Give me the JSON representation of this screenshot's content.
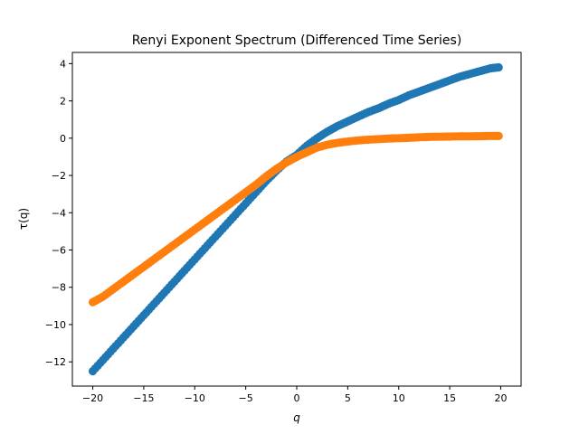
{
  "chart_data": {
    "type": "scatter",
    "title": "Renyi Exponent Spectrum (Differenced Time Series)",
    "xlabel": "q",
    "ylabel": "τ(q)",
    "xlim": [
      -22,
      22
    ],
    "ylim": [
      -13.3,
      4.6
    ],
    "xticks": [
      -20,
      -15,
      -10,
      -5,
      0,
      5,
      10,
      15,
      20
    ],
    "xtick_labels": [
      "−20",
      "−15",
      "−10",
      "−5",
      "0",
      "5",
      "10",
      "15",
      "20"
    ],
    "yticks": [
      -12,
      -10,
      -8,
      -6,
      -4,
      -2,
      0,
      2,
      4
    ],
    "ytick_labels": [
      "−12",
      "−10",
      "−8",
      "−6",
      "−4",
      "−2",
      "0",
      "2",
      "4"
    ],
    "grid": false,
    "legend": "none",
    "series": [
      {
        "color": "#1f77b4",
        "x": [
          -20,
          -19,
          -18,
          -17,
          -16,
          -15,
          -14,
          -13,
          -12,
          -11,
          -10,
          -9,
          -8,
          -7,
          -6,
          -5,
          -4,
          -3,
          -2,
          -1,
          0,
          1,
          2,
          3,
          4,
          5,
          6,
          7,
          8,
          9,
          10,
          11,
          12,
          13,
          14,
          15,
          16,
          17,
          18,
          19,
          19.8
        ],
        "y": [
          -12.5,
          -11.9,
          -11.3,
          -10.7,
          -10.1,
          -9.5,
          -8.9,
          -8.3,
          -7.7,
          -7.1,
          -6.5,
          -5.9,
          -5.3,
          -4.7,
          -4.1,
          -3.5,
          -2.9,
          -2.3,
          -1.75,
          -1.25,
          -0.9,
          -0.4,
          0.0,
          0.35,
          0.65,
          0.9,
          1.15,
          1.4,
          1.6,
          1.85,
          2.05,
          2.3,
          2.5,
          2.7,
          2.9,
          3.1,
          3.3,
          3.45,
          3.6,
          3.75,
          3.8
        ]
      },
      {
        "color": "#ff7f0e",
        "x": [
          -20,
          -19,
          -18,
          -17,
          -16,
          -15,
          -14,
          -13,
          -12,
          -11,
          -10,
          -9,
          -8,
          -7,
          -6,
          -5,
          -4,
          -3,
          -2,
          -1,
          0,
          1,
          2,
          3,
          4,
          5,
          6,
          7,
          8,
          9,
          10,
          11,
          12,
          13,
          14,
          15,
          16,
          17,
          18,
          19,
          19.8
        ],
        "y": [
          -8.8,
          -8.5,
          -8.1,
          -7.7,
          -7.3,
          -6.9,
          -6.5,
          -6.1,
          -5.7,
          -5.3,
          -4.9,
          -4.5,
          -4.1,
          -3.7,
          -3.3,
          -2.9,
          -2.5,
          -2.05,
          -1.65,
          -1.3,
          -1.0,
          -0.75,
          -0.5,
          -0.35,
          -0.25,
          -0.18,
          -0.12,
          -0.08,
          -0.05,
          -0.02,
          0.0,
          0.02,
          0.05,
          0.07,
          0.08,
          0.09,
          0.1,
          0.1,
          0.11,
          0.12,
          0.12
        ]
      }
    ]
  }
}
